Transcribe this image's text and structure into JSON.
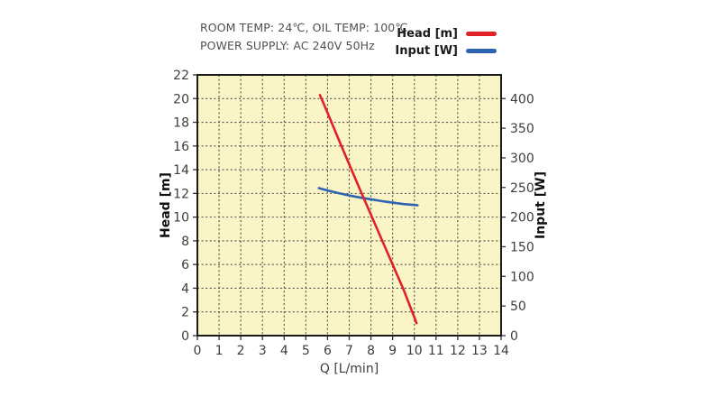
{
  "header": {
    "line1": "ROOM TEMP: 24℃, OIL TEMP: 100℃",
    "line2": "POWER SUPPLY: AC 240V 50Hz"
  },
  "legend": [
    {
      "label": "Head [m]",
      "color": "#e02128"
    },
    {
      "label": "Input [W]",
      "color": "#2e63b0"
    }
  ],
  "chart_data": {
    "type": "line",
    "title": "",
    "xlabel": "Q [L/min]",
    "ylabel_left": "Head [m]",
    "ylabel_right": "Input [W]",
    "xlim": [
      0,
      14
    ],
    "ylim_left": [
      0,
      22
    ],
    "ylim_right": [
      0,
      440
    ],
    "xticks": [
      0,
      1,
      2,
      3,
      4,
      5,
      6,
      7,
      8,
      9,
      10,
      11,
      12,
      13,
      14
    ],
    "yticks_left": [
      0,
      2,
      4,
      6,
      8,
      10,
      12,
      14,
      16,
      18,
      20,
      22
    ],
    "yticks_right": [
      0,
      50,
      100,
      150,
      200,
      250,
      300,
      350,
      400
    ],
    "grid": true,
    "grid_color": "#4d4d4d",
    "plot_bg": "#f9f5c7",
    "frame_color": "#1a1a1a",
    "tick_label_color": "#3d3d3d",
    "axis_label_color": "#111111",
    "legend_position": "top-right",
    "series": [
      {
        "name": "Input [W]",
        "axis": "right",
        "color": "#2e63b0",
        "points": [
          [
            5.6,
            249
          ],
          [
            6,
            245
          ],
          [
            6.5,
            240.5
          ],
          [
            7,
            236.5
          ],
          [
            7.5,
            233
          ],
          [
            8,
            230
          ],
          [
            8.5,
            227
          ],
          [
            9,
            224.5
          ],
          [
            9.5,
            222
          ],
          [
            10,
            220.5
          ],
          [
            10.15,
            220
          ]
        ]
      },
      {
        "name": "Head [m]",
        "axis": "left",
        "color": "#e02128",
        "points": [
          [
            5.65,
            20.3
          ],
          [
            6,
            18.8
          ],
          [
            6.5,
            16.6
          ],
          [
            7,
            14.45
          ],
          [
            7.5,
            12.3
          ],
          [
            8,
            10.2
          ],
          [
            8.5,
            8.1
          ],
          [
            9,
            6.0
          ],
          [
            9.5,
            3.9
          ],
          [
            10,
            1.55
          ],
          [
            10.1,
            1.05
          ]
        ]
      }
    ]
  }
}
